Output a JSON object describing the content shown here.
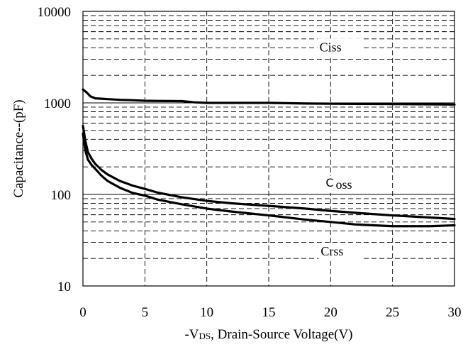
{
  "chart_data": {
    "type": "line",
    "xlabel": "-V",
    "xlabel_sub": "DS",
    "xlabel_rest": ", Drain-Source Voltage(V)",
    "ylabel": "Capacitance--(pF)",
    "xlim": [
      0,
      30
    ],
    "ylim": [
      10,
      10000
    ],
    "yscale": "log",
    "x_ticks": [
      0,
      5,
      10,
      15,
      20,
      25,
      30
    ],
    "x_tick_labels": [
      "0",
      "5",
      "10",
      "15",
      "20",
      "25",
      "30"
    ],
    "y_ticks": [
      10,
      100,
      1000,
      10000
    ],
    "y_tick_labels": [
      "10",
      "100",
      "1000",
      "10000"
    ],
    "grid": "dashed",
    "series": [
      {
        "name": "Ciss",
        "label_prefix": "",
        "label_rest": "Ciss",
        "x": [
          0,
          0.3,
          0.6,
          1,
          1.5,
          2,
          3,
          4,
          5,
          6,
          8,
          9,
          10,
          12,
          15,
          18,
          20,
          22,
          25,
          28,
          30
        ],
        "values": [
          1400,
          1300,
          1180,
          1120,
          1110,
          1100,
          1080,
          1070,
          1055,
          1050,
          1045,
          1015,
          1000,
          1000,
          1000,
          985,
          980,
          975,
          970,
          965,
          960
        ]
      },
      {
        "name": "Coss",
        "label_prefix": "C",
        "label_rest": "oss",
        "x": [
          0,
          0.2,
          0.4,
          0.7,
          1,
          1.5,
          2,
          3,
          4,
          5,
          6,
          8,
          10,
          12,
          15,
          18,
          20,
          22,
          25,
          28,
          30
        ],
        "values": [
          560,
          380,
          290,
          245,
          215,
          185,
          165,
          140,
          125,
          115,
          105,
          93,
          85,
          80,
          75,
          70,
          66,
          63,
          59,
          56,
          54
        ]
      },
      {
        "name": "Crss",
        "label_prefix": "",
        "label_rest": "Crss",
        "x": [
          0,
          0.2,
          0.4,
          0.7,
          1,
          1.5,
          2,
          3,
          4,
          5,
          6,
          8,
          10,
          12,
          15,
          18,
          20,
          22,
          25,
          28,
          30
        ],
        "values": [
          460,
          300,
          240,
          210,
          190,
          160,
          140,
          118,
          104,
          97,
          88,
          78,
          70,
          65,
          59,
          53,
          50,
          47,
          45,
          45,
          46
        ]
      }
    ]
  }
}
